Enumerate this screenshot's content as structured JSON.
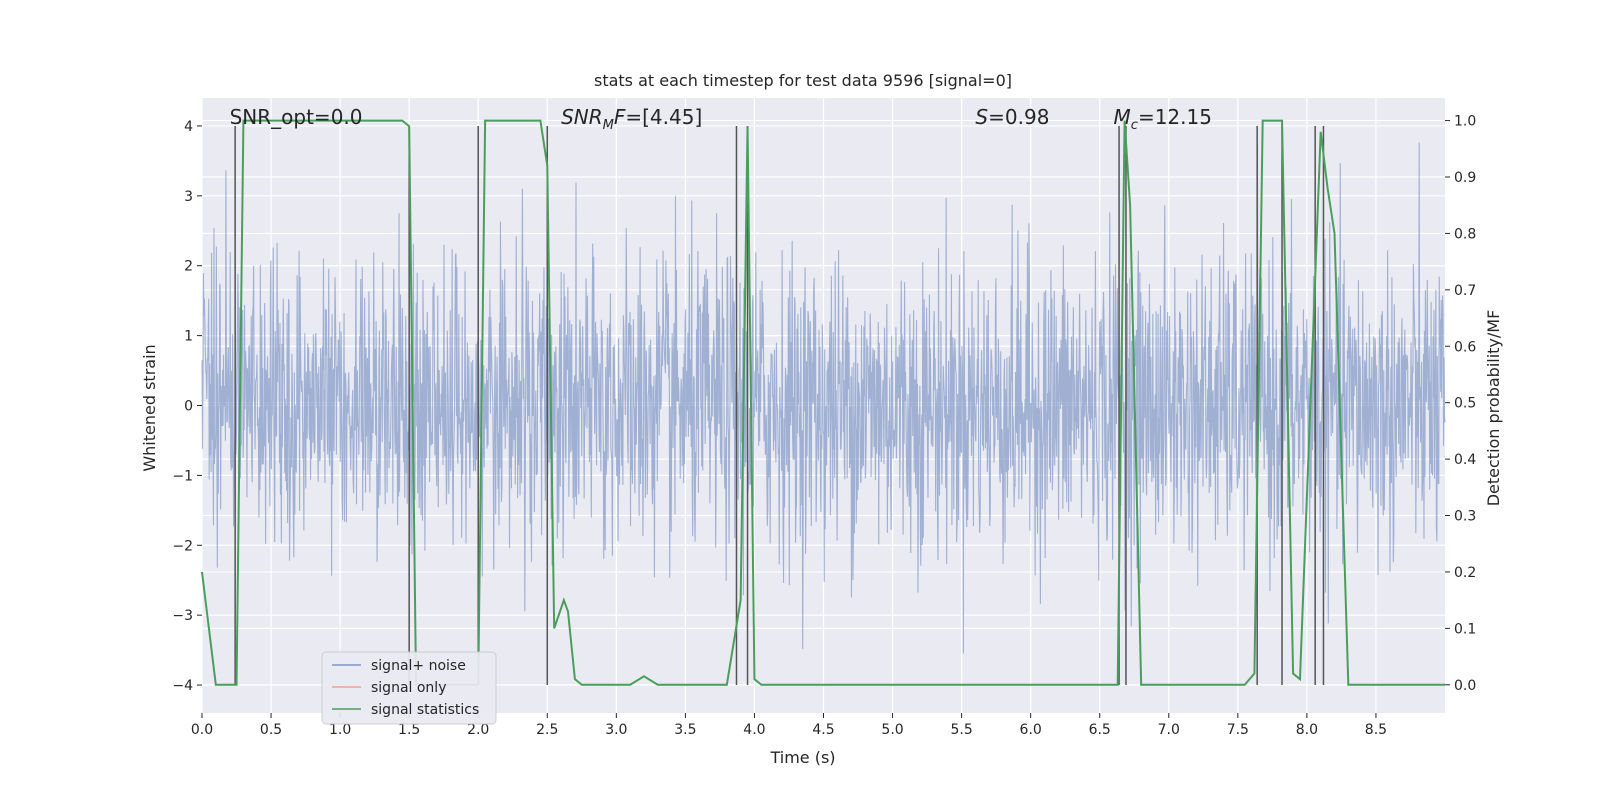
{
  "chart_data": {
    "type": "line",
    "title": "stats at each timestep for test data 9596 [signal=0]",
    "xlabel": "Time (s)",
    "ylabel_left": "Whitened strain",
    "ylabel_right": "Detection probability/MF",
    "xlim": [
      0.0,
      9.0
    ],
    "ylim_left": [
      -4.4,
      4.4
    ],
    "ylim_right": [
      -0.05,
      1.04
    ],
    "x_ticks": [
      0.0,
      0.5,
      1.0,
      1.5,
      2.0,
      2.5,
      3.0,
      3.5,
      4.0,
      4.5,
      5.0,
      5.5,
      6.0,
      6.5,
      7.0,
      7.5,
      8.0,
      8.5
    ],
    "x_tick_labels": [
      "0.0",
      "0.5",
      "1.0",
      "1.5",
      "2.0",
      "2.5",
      "3.0",
      "3.5",
      "4.0",
      "4.5",
      "5.0",
      "5.5",
      "6.0",
      "6.5",
      "7.0",
      "7.5",
      "8.0",
      "8.5"
    ],
    "y_ticks_left": [
      -4,
      -3,
      -2,
      -1,
      0,
      1,
      2,
      3,
      4
    ],
    "y_tick_labels_left": [
      "−4",
      "−3",
      "−2",
      "−1",
      "0",
      "1",
      "2",
      "3",
      "4"
    ],
    "y_ticks_right": [
      0.0,
      0.1,
      0.2,
      0.3,
      0.4,
      0.5,
      0.6,
      0.7,
      0.8,
      0.9,
      1.0
    ],
    "y_tick_labels_right": [
      "0.0",
      "0.1",
      "0.2",
      "0.3",
      "0.4",
      "0.5",
      "0.6",
      "0.7",
      "0.8",
      "0.9",
      "1.0"
    ],
    "grid": true,
    "legend_placement": "lower-left",
    "annotations": [
      {
        "text": "SNR_opt=0.0",
        "x": 0.2
      },
      {
        "text": "SNR",
        "sub": "M",
        "italic_suffix": "F",
        "suffix": "=[4.45]",
        "x": 2.6
      },
      {
        "text": "S",
        "italic": true,
        "suffix": "=0.98",
        "x": 5.6
      },
      {
        "text": "M",
        "sub": "c",
        "italic": true,
        "suffix": "=12.15",
        "x": 6.6
      }
    ],
    "series": [
      {
        "name": "signal+ noise",
        "axis": "left",
        "color": "#7f97c6",
        "style": "dense noise, std ~1.0, range ~[-4, 4]"
      },
      {
        "name": "signal only",
        "axis": "left",
        "color": "#e8a888",
        "values": []
      },
      {
        "name": "signal statistics",
        "axis": "right",
        "color": "#4a9e5c",
        "x": [
          0.0,
          0.05,
          0.1,
          0.25,
          0.3,
          1.45,
          1.5,
          1.55,
          2.0,
          2.05,
          2.45,
          2.5,
          2.55,
          2.62,
          2.65,
          2.7,
          2.75,
          3.1,
          3.2,
          3.3,
          3.8,
          3.9,
          3.95,
          4.0,
          4.05,
          6.0,
          6.1,
          6.6,
          6.63,
          6.68,
          6.72,
          6.8,
          7.55,
          7.62,
          7.68,
          7.73,
          7.82,
          7.9,
          7.95,
          8.1,
          8.15,
          8.2,
          8.3,
          9.0
        ],
        "y": [
          0.2,
          0.1,
          0.0,
          0.0,
          1.0,
          1.0,
          0.99,
          0.0,
          0.0,
          1.0,
          1.0,
          0.92,
          0.1,
          0.15,
          0.13,
          0.01,
          0.0,
          0.0,
          0.015,
          0.0,
          0.0,
          0.15,
          0.99,
          0.01,
          0.0,
          0.0,
          0.0,
          0.0,
          0.0,
          1.0,
          0.85,
          0.0,
          0.0,
          0.02,
          1.0,
          1.0,
          1.0,
          0.02,
          0.01,
          0.98,
          0.88,
          0.8,
          0.0,
          0.0
        ]
      }
    ],
    "vertical_lines": [
      0.24,
      1.5,
      2.0,
      2.5,
      3.87,
      3.95,
      6.64,
      6.69,
      7.64,
      7.82,
      8.06,
      8.12
    ]
  }
}
